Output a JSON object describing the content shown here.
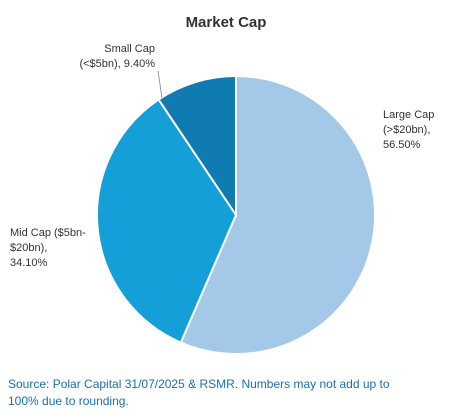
{
  "chart_data": {
    "type": "pie",
    "title": "Market Cap",
    "slices": [
      {
        "label_lines": [
          "Large Cap",
          "(>$20bn),",
          "56.50%"
        ],
        "value": 56.5,
        "color": "#a3c8e8"
      },
      {
        "label_lines": [
          "Mid Cap ($5bn-",
          "$20bn),",
          "34.10%"
        ],
        "value": 34.1,
        "color": "#159fd9"
      },
      {
        "label_lines": [
          "Small Cap",
          "(<$5bn), 9.40%"
        ],
        "value": 9.4,
        "color": "#0f7bb0"
      }
    ],
    "start_angle_deg": 0,
    "direction": "clockwise"
  },
  "source_note": "Source: Polar Capital 31/07/2025 & RSMR. Numbers may not add up to 100% due to rounding."
}
